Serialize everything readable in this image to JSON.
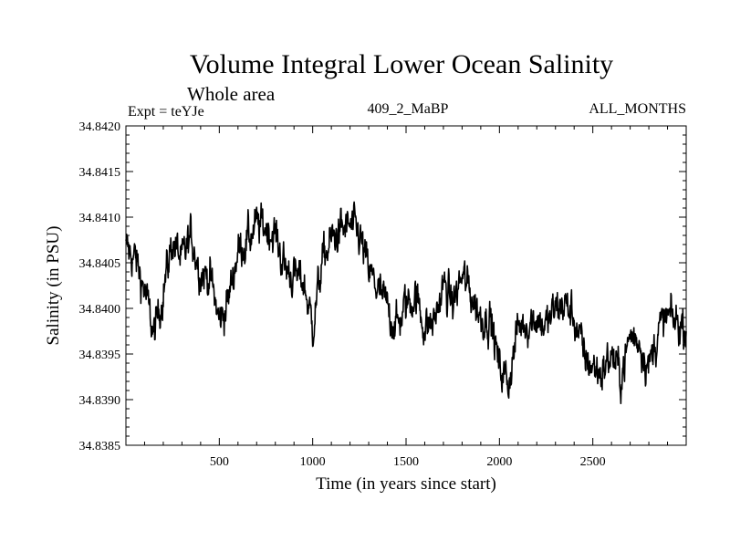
{
  "chart_data": {
    "type": "line",
    "title": "Volume Integral Lower Ocean Salinity",
    "subtitle": "Whole area",
    "expt_label": "Expt = teYJe",
    "run_label": "409_2_MaBP",
    "months_label": "ALL_MONTHS",
    "xlabel": "Time (in years since start)",
    "ylabel": "Salinity (in PSU)",
    "xlim": [
      0,
      3000
    ],
    "ylim": [
      34.8385,
      34.842
    ],
    "x_ticks": [
      500,
      1000,
      1500,
      2000,
      2500
    ],
    "y_ticks": [
      "34.8385",
      "34.8390",
      "34.8395",
      "34.8400",
      "34.8405",
      "34.8410",
      "34.8415",
      "34.8420"
    ],
    "series": [
      {
        "name": "salinity",
        "color": "#000000",
        "x": [
          0,
          50,
          100,
          150,
          200,
          250,
          300,
          350,
          400,
          450,
          500,
          550,
          600,
          650,
          700,
          750,
          800,
          850,
          900,
          950,
          1000,
          1050,
          1100,
          1150,
          1200,
          1250,
          1300,
          1350,
          1400,
          1450,
          1500,
          1550,
          1600,
          1650,
          1700,
          1750,
          1800,
          1850,
          1900,
          1950,
          2000,
          2050,
          2100,
          2150,
          2200,
          2250,
          2300,
          2350,
          2400,
          2450,
          2500,
          2550,
          2600,
          2650,
          2700,
          2750,
          2800,
          2850,
          2900,
          2950,
          3000
        ],
        "values": [
          34.84065,
          34.84055,
          34.8402,
          34.8397,
          34.8402,
          34.84075,
          34.8405,
          34.8408,
          34.8404,
          34.84035,
          34.83985,
          34.8401,
          34.84065,
          34.84075,
          34.8409,
          34.8409,
          34.8408,
          34.84045,
          34.84035,
          34.8403,
          34.8398,
          34.8405,
          34.84075,
          34.84085,
          34.8409,
          34.8408,
          34.8404,
          34.8402,
          34.84,
          34.8398,
          34.84005,
          34.84015,
          34.8398,
          34.83985,
          34.84025,
          34.84005,
          34.84035,
          34.84015,
          34.8399,
          34.8399,
          34.83935,
          34.8392,
          34.8398,
          34.83985,
          34.8399,
          34.8398,
          34.84,
          34.84005,
          34.8399,
          34.8395,
          34.83935,
          34.8393,
          34.8395,
          34.83925,
          34.8397,
          34.83965,
          34.83935,
          34.83975,
          34.8399,
          34.83985,
          34.8398
        ]
      }
    ]
  }
}
